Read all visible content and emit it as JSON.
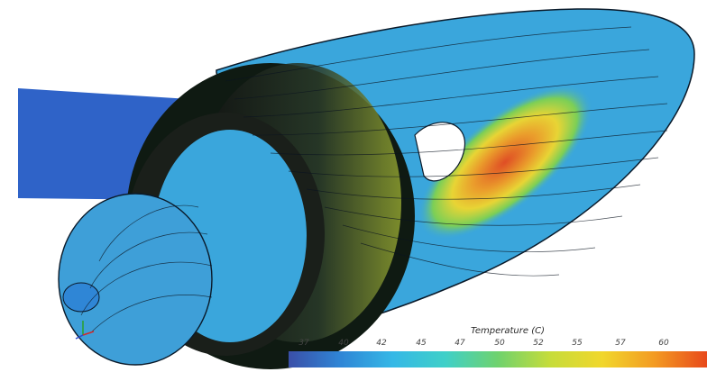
{
  "legend": {
    "title": "Temperature (C)",
    "ticks": [
      "37",
      "40",
      "42",
      "45",
      "47",
      "50",
      "52",
      "55",
      "57",
      "60"
    ],
    "colors": [
      "#3a4fa8",
      "#2f86d6",
      "#35b8e6",
      "#3fd0c8",
      "#6fd26e",
      "#c6dc3a",
      "#f1d72c",
      "#f39a22",
      "#e8491b"
    ]
  },
  "scene": {
    "subject": "cfd-temperature-streamline-render",
    "inlet_color": "#2f63c8",
    "body_base_color": "#3aa6dc",
    "hotspot_colors": [
      "#e8491b",
      "#f39a22",
      "#f1d72c",
      "#7fd14f"
    ]
  }
}
